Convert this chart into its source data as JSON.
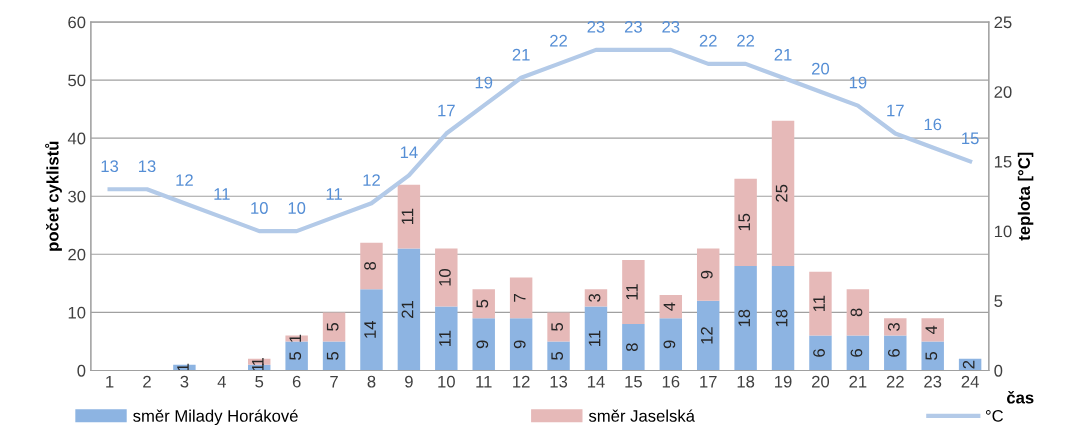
{
  "chart_data": {
    "type": "bar",
    "stacked": true,
    "xlabel": "čas",
    "ylabel": "počet cyklistů",
    "y2label": "teplota [°C]",
    "categories": [
      "1",
      "2",
      "3",
      "4",
      "5",
      "6",
      "7",
      "8",
      "9",
      "10",
      "11",
      "12",
      "13",
      "14",
      "15",
      "16",
      "17",
      "18",
      "19",
      "20",
      "21",
      "22",
      "23",
      "24"
    ],
    "series": [
      {
        "name": "směr Milady Horákové",
        "color": "#8db4e2",
        "values": [
          0,
          0,
          1,
          0,
          1,
          5,
          5,
          14,
          21,
          11,
          9,
          9,
          5,
          11,
          8,
          9,
          12,
          18,
          18,
          6,
          6,
          6,
          5,
          2
        ],
        "value_labels": [
          null,
          null,
          "1",
          null,
          "1",
          "5",
          "5",
          "14",
          "21",
          "11",
          "9",
          "9",
          "5",
          "11",
          "8",
          "9",
          "12",
          "18",
          "18",
          "6",
          "6",
          "6",
          "5",
          "2"
        ]
      },
      {
        "name": "směr Jaselská",
        "color": "#e6b9b8",
        "values": [
          0,
          0,
          0,
          0,
          1,
          1,
          5,
          8,
          11,
          10,
          5,
          7,
          5,
          3,
          11,
          4,
          9,
          15,
          25,
          11,
          8,
          3,
          4,
          0
        ],
        "value_labels": [
          null,
          null,
          null,
          null,
          "1",
          "1",
          "5",
          "8",
          "11",
          "10",
          "5",
          "7",
          "5",
          "3",
          "11",
          "4",
          "9",
          "15",
          "25",
          "11",
          "8",
          "3",
          "4",
          null
        ]
      },
      {
        "name": "°C",
        "type": "line",
        "axis": "y2",
        "color": "#b3cae8",
        "data_labels": true,
        "values": [
          13,
          13,
          12,
          11,
          10,
          10,
          11,
          12,
          14,
          17,
          19,
          21,
          22,
          23,
          23,
          23,
          22,
          22,
          21,
          20,
          19,
          17,
          16,
          15
        ]
      }
    ],
    "ylim": [
      0,
      60
    ],
    "yticks": [
      0,
      10,
      20,
      30,
      40,
      50,
      60
    ],
    "y2lim": [
      0,
      25
    ],
    "y2ticks": [
      0,
      5,
      10,
      15,
      20,
      25
    ],
    "grid": "y",
    "legend": "bottom",
    "marker": "none",
    "line_style": "solid"
  }
}
